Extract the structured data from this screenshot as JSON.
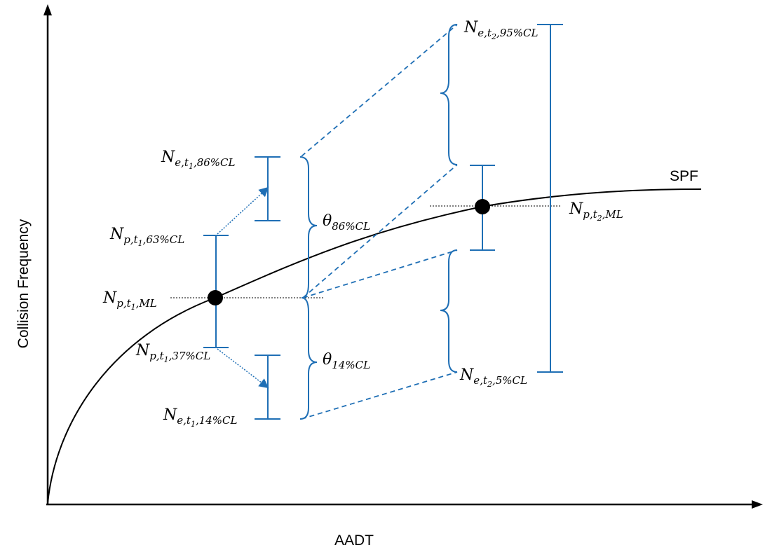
{
  "axes": {
    "x_label": "AADT",
    "y_label": "Collision Frequency"
  },
  "curve_label": "SPF",
  "labels": {
    "ne_t1_86": {
      "main": "N",
      "sub": "e,t",
      "subsub": "1",
      "tail": ",86%CL"
    },
    "np_t1_63": {
      "main": "N",
      "sub": "p,t",
      "subsub": "1",
      "tail": ",63%CL"
    },
    "np_t1_ml": {
      "main": "N",
      "sub": "p,t",
      "subsub": "1",
      "tail": ",ML"
    },
    "np_t1_37": {
      "main": "N",
      "sub": "p,t",
      "subsub": "1",
      "tail": ",37%CL"
    },
    "ne_t1_14": {
      "main": "N",
      "sub": "e,t",
      "subsub": "1",
      "tail": ",14%CL"
    },
    "theta_86": {
      "main": "θ",
      "sub": "86%CL"
    },
    "theta_14": {
      "main": "θ",
      "sub": "14%CL"
    },
    "ne_t2_95": {
      "main": "N",
      "sub": "e,t",
      "subsub": "2",
      "tail": ",95%CL"
    },
    "np_t2_ml": {
      "main": "N",
      "sub": "p,t",
      "subsub": "2",
      "tail": ",ML"
    },
    "ne_t2_5": {
      "main": "N",
      "sub": "e,t",
      "subsub": "2",
      "tail": ",5%CL"
    }
  },
  "colors": {
    "blue": "#1f6fb5",
    "black": "#000000"
  }
}
